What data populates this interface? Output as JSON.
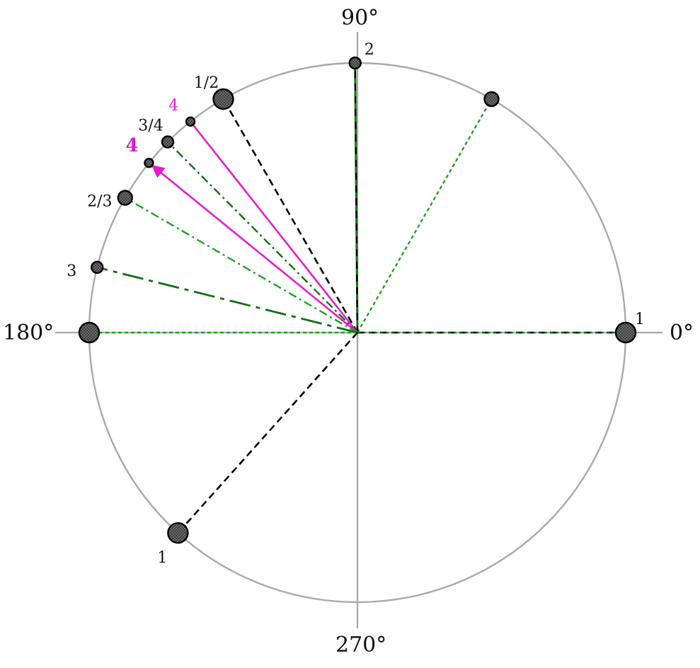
{
  "axes": {
    "right_label": "0°",
    "top_label": "90°",
    "left_label": "180°",
    "bottom_label": "270°"
  },
  "colors": {
    "circle": "#a9a9a9",
    "axes": "#a9a9a9",
    "black_dashed": "#000000",
    "green_light": "#1fa31f",
    "green_dark": "#117011",
    "magenta": "#e81ccf",
    "point_fill": "#5c5c5c",
    "point_stroke": "#000000"
  },
  "points": [
    {
      "id": "p-1-right",
      "angle": 0,
      "label": "1",
      "size": "large",
      "label_side": "upper-right"
    },
    {
      "id": "p-60",
      "angle": 60,
      "label": "",
      "size": "medium",
      "label_side": "none"
    },
    {
      "id": "p-2-top",
      "angle": 90.5,
      "label": "2",
      "size": "small",
      "label_side": "upper-right"
    },
    {
      "id": "p-1-2",
      "angle": 120,
      "label": "1/2",
      "size": "large",
      "label_side": "upper-left"
    },
    {
      "id": "p-4-small",
      "angle": 128.5,
      "label": "4",
      "size": "tiny",
      "label_side": "upper-left",
      "label_style": "magenta"
    },
    {
      "id": "p-3-4",
      "angle": 135,
      "label": "3/4",
      "size": "small",
      "label_side": "upper-left"
    },
    {
      "id": "p-4-bold",
      "angle": 141,
      "label": "4",
      "size": "tiny",
      "label_side": "upper-left",
      "label_style": "magenta-bold"
    },
    {
      "id": "p-2-3",
      "angle": 150,
      "label": "2/3",
      "size": "medium",
      "label_side": "left"
    },
    {
      "id": "p-3",
      "angle": 166,
      "label": "3",
      "size": "small",
      "label_side": "left"
    },
    {
      "id": "p-180",
      "angle": 180,
      "label": "",
      "size": "large",
      "label_side": "none"
    },
    {
      "id": "p-1-lower",
      "angle": 228,
      "label": "1",
      "size": "large",
      "label_side": "lower-left"
    }
  ],
  "spokes": [
    {
      "to": 0,
      "color": "black_dashed",
      "dash": "10,6",
      "width": 2.6,
      "arrow": false
    },
    {
      "to": 0,
      "color": "green_dark",
      "dash": "4,4",
      "width": 1.8,
      "arrow": false
    },
    {
      "to": 60,
      "color": "green_light",
      "dash": "5,4",
      "width": 2.4,
      "arrow": false
    },
    {
      "to": 90.5,
      "color": "green_dark",
      "dash": "",
      "width": 3,
      "arrow": false
    },
    {
      "to": 90.5,
      "color": "black_dashed",
      "dash": "10,8",
      "width": 2.2,
      "arrow": false
    },
    {
      "to": 120,
      "color": "black_dashed",
      "dash": "10,6",
      "width": 2.6,
      "arrow": false
    },
    {
      "to": 128.5,
      "color": "magenta",
      "dash": "",
      "width": 2.6,
      "arrow": false
    },
    {
      "to": 135,
      "color": "green_dark",
      "dash": "12,5,3,5",
      "width": 2.4,
      "arrow": false
    },
    {
      "to": 141,
      "color": "magenta",
      "dash": "",
      "width": 2.6,
      "arrow": true
    },
    {
      "to": 150,
      "color": "green_light",
      "dash": "12,5,3,5",
      "width": 2.4,
      "arrow": false
    },
    {
      "to": 166,
      "color": "green_dark",
      "dash": "30,8,6,8",
      "width": 2.8,
      "arrow": false
    },
    {
      "to": 180,
      "color": "green_light",
      "dash": "5,4",
      "width": 2.4,
      "arrow": false
    },
    {
      "to": 228,
      "color": "black_dashed",
      "dash": "10,6",
      "width": 2.6,
      "arrow": false
    }
  ]
}
